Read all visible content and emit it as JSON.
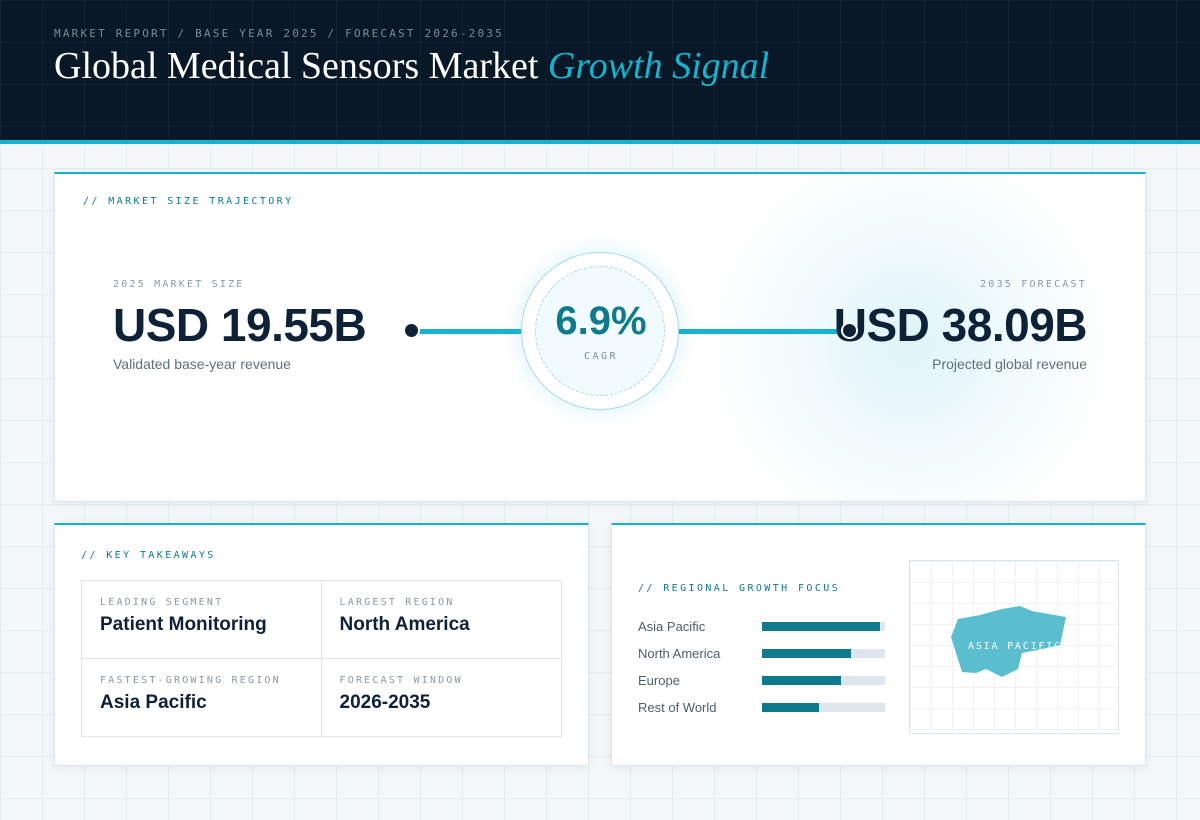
{
  "header": {
    "kicker": "MARKET REPORT / BASE YEAR 2025 / FORECAST 2026-2035",
    "title_main": "Global Medical Sensors Market ",
    "title_accent": "Growth Signal"
  },
  "trajectory": {
    "section_label": "// MARKET SIZE TRAJECTORY",
    "base": {
      "label": "2025 MARKET SIZE",
      "value": "USD 19.55B",
      "caption": "Validated base-year revenue"
    },
    "cagr": {
      "value": "6.9%",
      "label": "CAGR"
    },
    "forecast": {
      "label": "2035 FORECAST",
      "value": "USD 38.09B",
      "caption": "Projected global revenue"
    }
  },
  "takeaways": {
    "section_label": "// KEY TAKEAWAYS",
    "items": [
      {
        "label": "LEADING SEGMENT",
        "value": "Patient Monitoring"
      },
      {
        "label": "LARGEST REGION",
        "value": "North America"
      },
      {
        "label": "FASTEST-GROWING REGION",
        "value": "Asia Pacific"
      },
      {
        "label": "FORECAST WINDOW",
        "value": "2026-2035"
      }
    ]
  },
  "regional": {
    "section_label": "// REGIONAL GROWTH FOCUS",
    "rows": [
      {
        "name": "Asia Pacific",
        "level": 0.96
      },
      {
        "name": "North America",
        "level": 0.72
      },
      {
        "name": "Europe",
        "level": 0.64
      },
      {
        "name": "Rest of World",
        "level": 0.46
      }
    ],
    "map_label": "ASIA PACIFIC",
    "map_color": "#5bbecf"
  },
  "colors": {
    "accent": "#14b3cf",
    "accent_dark": "#0e7a8c",
    "navy": "#0d2236"
  }
}
